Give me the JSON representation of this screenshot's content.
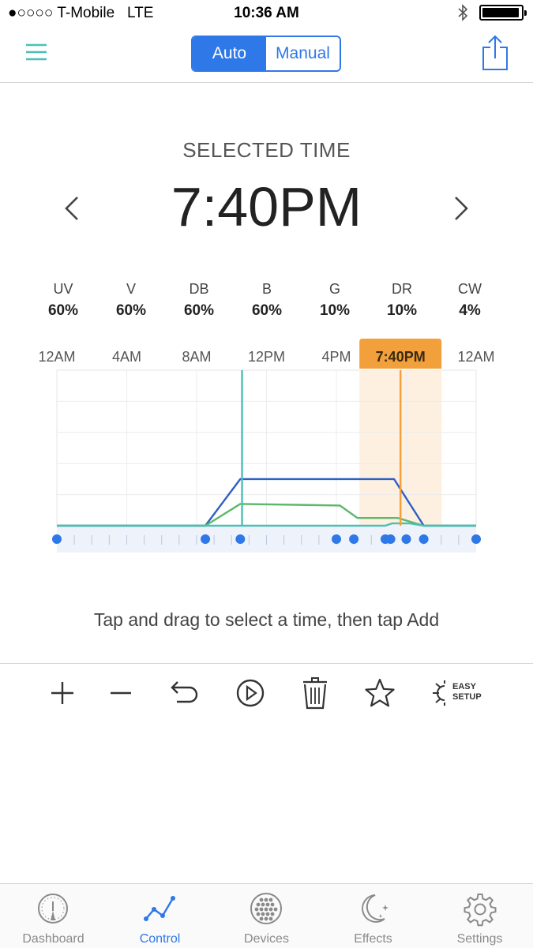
{
  "status_bar": {
    "carrier": "●○○○○ T-Mobile",
    "network": "LTE",
    "time": "10:36 AM"
  },
  "header": {
    "mode_auto": "Auto",
    "mode_manual": "Manual",
    "active_mode": "Auto"
  },
  "selected": {
    "label": "SELECTED TIME",
    "time": "7:40PM"
  },
  "channels": [
    {
      "name": "UV",
      "value": "60%"
    },
    {
      "name": "V",
      "value": "60%"
    },
    {
      "name": "DB",
      "value": "60%"
    },
    {
      "name": "B",
      "value": "60%"
    },
    {
      "name": "G",
      "value": "10%"
    },
    {
      "name": "DR",
      "value": "10%"
    },
    {
      "name": "CW",
      "value": "4%"
    }
  ],
  "chart_data": {
    "type": "line",
    "x_tick_labels": [
      "12AM",
      "4AM",
      "8AM",
      "12PM",
      "4PM",
      "12AM"
    ],
    "selected_label": "7:40PM",
    "xlim_hours": [
      0,
      24
    ],
    "ylim_percent": [
      0,
      100
    ],
    "grid": true,
    "selected_hour": 19.67,
    "marker_hour": 10.6,
    "series": [
      {
        "color": "#2f5fc4",
        "x": [
          0,
          8.5,
          10.5,
          15,
          19.3,
          21,
          24
        ],
        "y": [
          0,
          0,
          30,
          30,
          30,
          0,
          0
        ]
      },
      {
        "color": "#5cb86b",
        "x": [
          0,
          8.5,
          10.5,
          16.2,
          17.2,
          19.5,
          21,
          24
        ],
        "y": [
          0,
          0,
          14,
          13,
          5,
          5,
          0,
          0
        ]
      },
      {
        "color": "#4bbfb6",
        "x": [
          0,
          18.8,
          19.2,
          20.2,
          21,
          24
        ],
        "y": [
          0,
          0,
          1.5,
          1.5,
          0,
          0
        ]
      }
    ],
    "keyframe_hours": [
      0,
      8.5,
      10.5,
      16,
      17,
      18.8,
      19.1,
      20,
      21,
      24
    ]
  },
  "hint": "Tap and drag to select a time, then tap Add",
  "toolbar": {
    "easy_setup_line1": "EASY",
    "easy_setup_line2": "SETUP"
  },
  "tabs": [
    {
      "label": "Dashboard",
      "icon": "gauge-icon"
    },
    {
      "label": "Control",
      "icon": "graph-icon"
    },
    {
      "label": "Devices",
      "icon": "devices-icon"
    },
    {
      "label": "Effects",
      "icon": "moon-icon"
    },
    {
      "label": "Settings",
      "icon": "gear-icon"
    }
  ],
  "colors": {
    "accent": "#2f78e8",
    "teal": "#4bbfb6",
    "orange": "#f2a03b"
  }
}
